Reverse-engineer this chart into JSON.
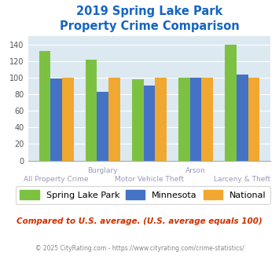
{
  "title": "2019 Spring Lake Park\nProperty Crime Comparison",
  "spring_lake_park": [
    132,
    122,
    98,
    100,
    140
  ],
  "minnesota": [
    99,
    83,
    91,
    100,
    104
  ],
  "national": [
    100,
    100,
    100,
    100,
    100
  ],
  "colors": {
    "spring_lake_park": "#7dc142",
    "minnesota": "#4472c4",
    "national": "#f0a830"
  },
  "ylim": [
    0,
    150
  ],
  "yticks": [
    0,
    20,
    40,
    60,
    80,
    100,
    120,
    140
  ],
  "background_color": "#dce9f0",
  "title_color": "#1565c0",
  "footer_text": "Compared to U.S. average. (U.S. average equals 100)",
  "copyright_text": "© 2025 CityRating.com - https://www.cityrating.com/crime-statistics/",
  "legend_labels": [
    "Spring Lake Park",
    "Minnesota",
    "National"
  ],
  "bar_width": 0.25,
  "top_xlabels": [
    [
      1,
      "Burglary"
    ],
    [
      3,
      "Arson"
    ]
  ],
  "bottom_xlabels": [
    [
      0,
      "All Property Crime"
    ],
    [
      2,
      "Motor Vehicle Theft"
    ],
    [
      4,
      "Larceny & Theft"
    ]
  ]
}
